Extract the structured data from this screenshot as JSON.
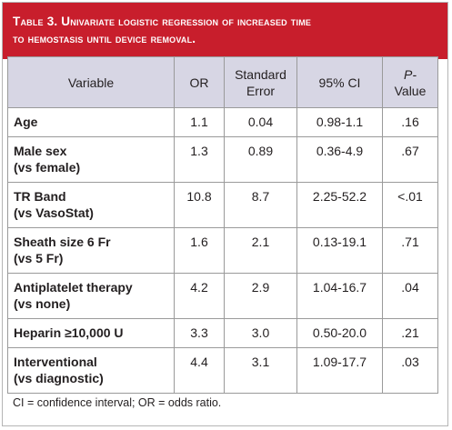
{
  "title": {
    "line1": "Table 3. Univariate logistic regression of increased time",
    "line2": "to hemostasis until device removal."
  },
  "columns": {
    "variable": "Variable",
    "or": "OR",
    "se_line1": "Standard",
    "se_line2": "Error",
    "ci": "95% CI",
    "p_line1": "P-",
    "p_line2": "Value"
  },
  "rows": [
    {
      "line1": "Age",
      "line2": "",
      "or": "1.1",
      "se": "0.04",
      "ci": "0.98-1.1",
      "p": ".16"
    },
    {
      "line1": "Male sex",
      "line2": "(vs female)",
      "or": "1.3",
      "se": "0.89",
      "ci": "0.36-4.9",
      "p": ".67"
    },
    {
      "line1": "TR Band",
      "line2": "(vs VasoStat)",
      "or": "10.8",
      "se": "8.7",
      "ci": "2.25-52.2",
      "p": "<.01"
    },
    {
      "line1": "Sheath size 6 Fr",
      "line2": "(vs 5 Fr)",
      "or": "1.6",
      "se": "2.1",
      "ci": "0.13-19.1",
      "p": ".71"
    },
    {
      "line1": "Antiplatelet therapy",
      "line2": "(vs none)",
      "or": "4.2",
      "se": "2.9",
      "ci": "1.04-16.7",
      "p": ".04"
    },
    {
      "line1": "Heparin ≥10,000 U",
      "line2": "",
      "or": "3.3",
      "se": "3.0",
      "ci": "0.50-20.0",
      "p": ".21"
    },
    {
      "line1": "Interventional",
      "line2": "(vs diagnostic)",
      "or": "4.4",
      "se": "3.1",
      "ci": "1.09-17.7",
      "p": ".03"
    }
  ],
  "footnote": "CI = confidence interval; OR = odds ratio.",
  "colors": {
    "title_bg": "#c81e2c",
    "header_bg": "#d7d6e4"
  }
}
